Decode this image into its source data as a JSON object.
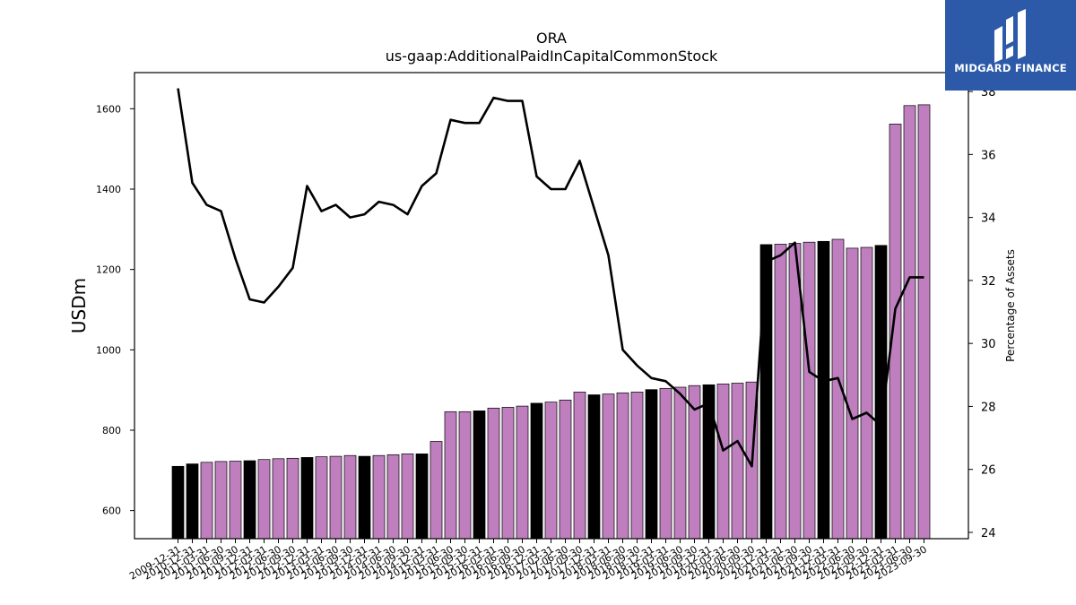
{
  "chart_data": {
    "type": "bar",
    "title": "ORA",
    "subtitle": "us-gaap:AdditionalPaidInCapitalCommonStock",
    "ylabel": "USDm",
    "y2label": "Percentage of Assets",
    "ylim": [
      530,
      1690
    ],
    "y2lim": [
      23.8,
      38.6
    ],
    "yticks": [
      600,
      800,
      1000,
      1200,
      1400,
      1600
    ],
    "y2ticks": [
      24,
      26,
      28,
      30,
      32,
      34,
      36,
      38
    ],
    "colors": {
      "annual": "#000000",
      "quarterly": "#bf7fbf",
      "line": "#000000"
    },
    "categories": [
      "2009-12-31",
      "2010-12-31",
      "2011-03-31",
      "2011-06-30",
      "2011-09-30",
      "2011-12-31",
      "2012-03-31",
      "2012-06-30",
      "2012-09-30",
      "2012-12-31",
      "2013-03-31",
      "2013-06-30",
      "2013-09-30",
      "2013-12-31",
      "2014-03-31",
      "2014-06-30",
      "2014-09-30",
      "2014-12-31",
      "2015-03-31",
      "2015-06-30",
      "2015-09-30",
      "2015-12-31",
      "2016-03-31",
      "2016-06-30",
      "2016-09-30",
      "2016-12-31",
      "2017-03-31",
      "2017-06-30",
      "2017-09-30",
      "2017-12-31",
      "2018-03-31",
      "2018-06-30",
      "2018-09-30",
      "2018-12-31",
      "2019-03-31",
      "2019-06-30",
      "2019-09-30",
      "2019-12-31",
      "2020-03-31",
      "2020-06-30",
      "2020-09-30",
      "2020-12-31",
      "2021-03-31",
      "2021-06-30",
      "2021-09-30",
      "2021-12-31",
      "2022-03-31",
      "2022-06-30",
      "2022-09-30",
      "2022-12-31",
      "2023-03-31",
      "2023-06-30",
      "2023-09-30"
    ],
    "xtick_labels": [
      "2009-12-31",
      "2010-12-31",
      "2011-03-31",
      "2011-06-30",
      "2011-09-30",
      "2011-12-31",
      "2012-03-31",
      "2012-06-30",
      "2012-09-30",
      "2012-12-31",
      "2013-03-31",
      "2013-06-30",
      "2013-09-30",
      "2013-12-31",
      "2014-03-31",
      "2014-06-30",
      "2014-09-30",
      "2014-12-31",
      "2015-03-31",
      "2015-06-30",
      "2015-09-30",
      "2015-12-31",
      "2016-03-31",
      "2016-06-30",
      "2016-09-30",
      "2016-12-31",
      "2017-03-31",
      "2017-06-30",
      "2017-09-30",
      "2017-12-31",
      "2018-03-31",
      "2018-06-30",
      "2018-09-30",
      "2018-12-31",
      "2019-03-31",
      "2019-06-30",
      "2019-09-30",
      "2019-12-31",
      "2020-03-31",
      "2020-06-30",
      "2020-09-30",
      "2020-12-31",
      "2021-03-31",
      "2021-06-30",
      "2021-09-30",
      "2021-12-31",
      "2022-03-31",
      "2022-06-30",
      "2022-09-30",
      "2022-12-31",
      "2023-03-31",
      "2023-06-30",
      "2023-09-30"
    ],
    "bar_period": [
      "annual",
      "annual",
      "quarterly",
      "quarterly",
      "quarterly",
      "annual",
      "quarterly",
      "quarterly",
      "quarterly",
      "annual",
      "quarterly",
      "quarterly",
      "quarterly",
      "annual",
      "quarterly",
      "quarterly",
      "quarterly",
      "annual",
      "quarterly",
      "quarterly",
      "quarterly",
      "annual",
      "quarterly",
      "quarterly",
      "quarterly",
      "annual",
      "quarterly",
      "quarterly",
      "quarterly",
      "annual",
      "quarterly",
      "quarterly",
      "quarterly",
      "annual",
      "quarterly",
      "quarterly",
      "quarterly",
      "annual",
      "quarterly",
      "quarterly",
      "quarterly",
      "annual",
      "quarterly",
      "quarterly",
      "quarterly",
      "annual",
      "quarterly",
      "quarterly",
      "quarterly",
      "annual",
      "quarterly",
      "quarterly",
      "quarterly"
    ],
    "series": [
      {
        "axis": "left",
        "kind": "bar",
        "values": [
          710,
          716,
          720,
          722,
          723,
          724,
          727,
          729,
          730,
          732,
          734,
          735,
          737,
          735,
          737,
          739,
          741,
          741,
          772,
          846,
          846,
          848,
          855,
          857,
          860,
          867,
          870,
          875,
          895,
          888,
          890,
          893,
          895,
          901,
          904,
          907,
          911,
          913,
          915,
          917,
          920,
          1262,
          1263,
          1265,
          1268,
          1270,
          1275,
          1253,
          1255,
          1260,
          1562,
          1608,
          1610
        ]
      },
      {
        "axis": "right",
        "kind": "line",
        "values": [
          38.1,
          35.1,
          34.4,
          34.2,
          32.7,
          31.4,
          31.3,
          31.8,
          32.4,
          35.0,
          34.2,
          34.4,
          34.0,
          34.1,
          34.5,
          34.4,
          34.1,
          35.0,
          35.4,
          37.1,
          37.0,
          37.0,
          37.8,
          37.7,
          37.7,
          35.3,
          34.9,
          34.9,
          35.8,
          34.3,
          32.8,
          29.8,
          29.3,
          28.9,
          28.8,
          28.4,
          27.9,
          28.1,
          26.6,
          26.9,
          26.1,
          32.6,
          32.8,
          33.2,
          29.1,
          28.8,
          28.9,
          27.6,
          27.8,
          27.4,
          31.1,
          32.1,
          32.1
        ]
      }
    ]
  },
  "logo": {
    "text": "MIDGARD FINANCE"
  }
}
